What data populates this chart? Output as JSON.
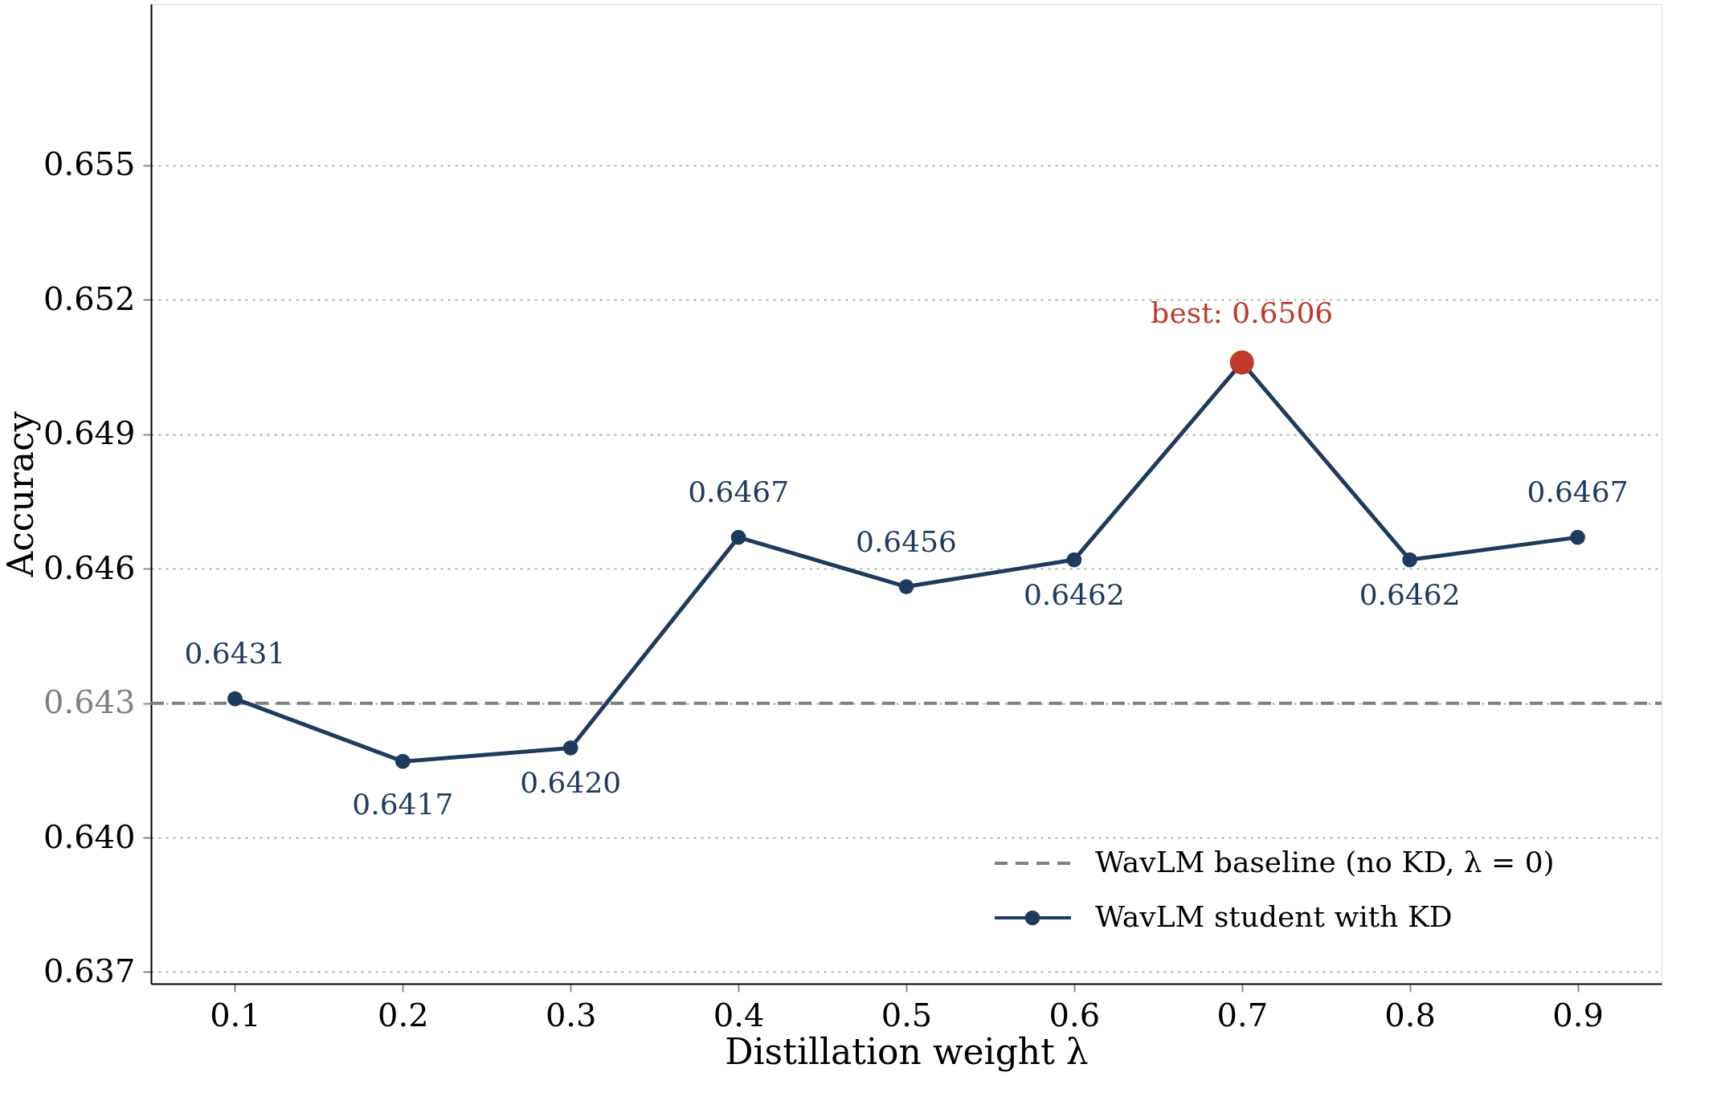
{
  "chart_data": {
    "type": "line",
    "xlabel": "Distillation weight λ",
    "ylabel": "Accuracy",
    "x": [
      0.1,
      0.2,
      0.3,
      0.4,
      0.5,
      0.6,
      0.7,
      0.8,
      0.9
    ],
    "series": [
      {
        "name": "WavLM baseline (no KD, λ = 0)",
        "type": "line",
        "color": "#808080",
        "x": [
          0.05,
          0.95
        ],
        "values": [
          0.643,
          0.643
        ],
        "line_style": "dashed",
        "marker": "none"
      },
      {
        "name": "WavLM student with KD",
        "color": "#1f3a5f",
        "values": [
          0.6431,
          0.6417,
          0.642,
          0.6467,
          0.6456,
          0.6462,
          0.6506,
          0.6462,
          0.6467
        ],
        "colors": [
          "#1f3a5f",
          "#1f3a5f",
          "#1f3a5f",
          "#1f3a5f",
          "#1f3a5f",
          "#1f3a5f",
          "#c0392b",
          "#1f3a5f",
          "#1f3a5f"
        ],
        "value_labels": [
          "0.6431",
          "0.6417",
          "0.6420",
          "0.6467",
          "0.6456",
          "0.6462",
          null,
          "0.6462",
          "0.6467"
        ]
      }
    ],
    "annotations": [
      {
        "text": "best: 0.6506",
        "x": 0.7,
        "y": 0.6506
      }
    ],
    "xlim": [
      0.05,
      0.95
    ],
    "xticks": [
      0.1,
      0.2,
      0.3,
      0.4,
      0.5,
      0.6,
      0.7,
      0.8,
      0.9
    ],
    "ylim": [
      0.63674,
      0.6586
    ],
    "yticks": [
      0.637,
      {
        "value": 0.64,
        "label": "0.640"
      },
      0.643,
      0.646,
      0.649,
      0.652,
      0.655
    ],
    "grid": "y",
    "legend": "bottom right",
    "marker": "circle",
    "line_style": "solid"
  }
}
